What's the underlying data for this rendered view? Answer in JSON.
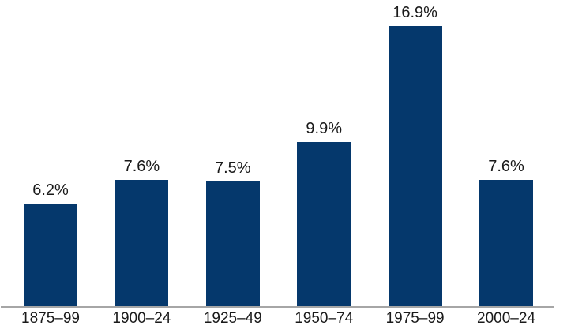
{
  "chart_data": {
    "type": "bar",
    "categories": [
      "1875–99",
      "1900–24",
      "1925–49",
      "1950–74",
      "1975–99",
      "2000–24"
    ],
    "values": [
      6.2,
      7.6,
      7.5,
      9.9,
      16.9,
      7.6
    ],
    "value_labels": [
      "6.2%",
      "7.6%",
      "7.5%",
      "9.9%",
      "16.9%",
      "7.6%"
    ],
    "title": "",
    "xlabel": "",
    "ylabel": "",
    "ylim": [
      0,
      17.5
    ],
    "grid": false,
    "legend": false,
    "value_labels_position": "above-bars",
    "bar_color": "#05386C",
    "axis_line_color": "#A6A6A6",
    "text_color": "#1A1A1A",
    "background_color": "#FFFFFF"
  }
}
